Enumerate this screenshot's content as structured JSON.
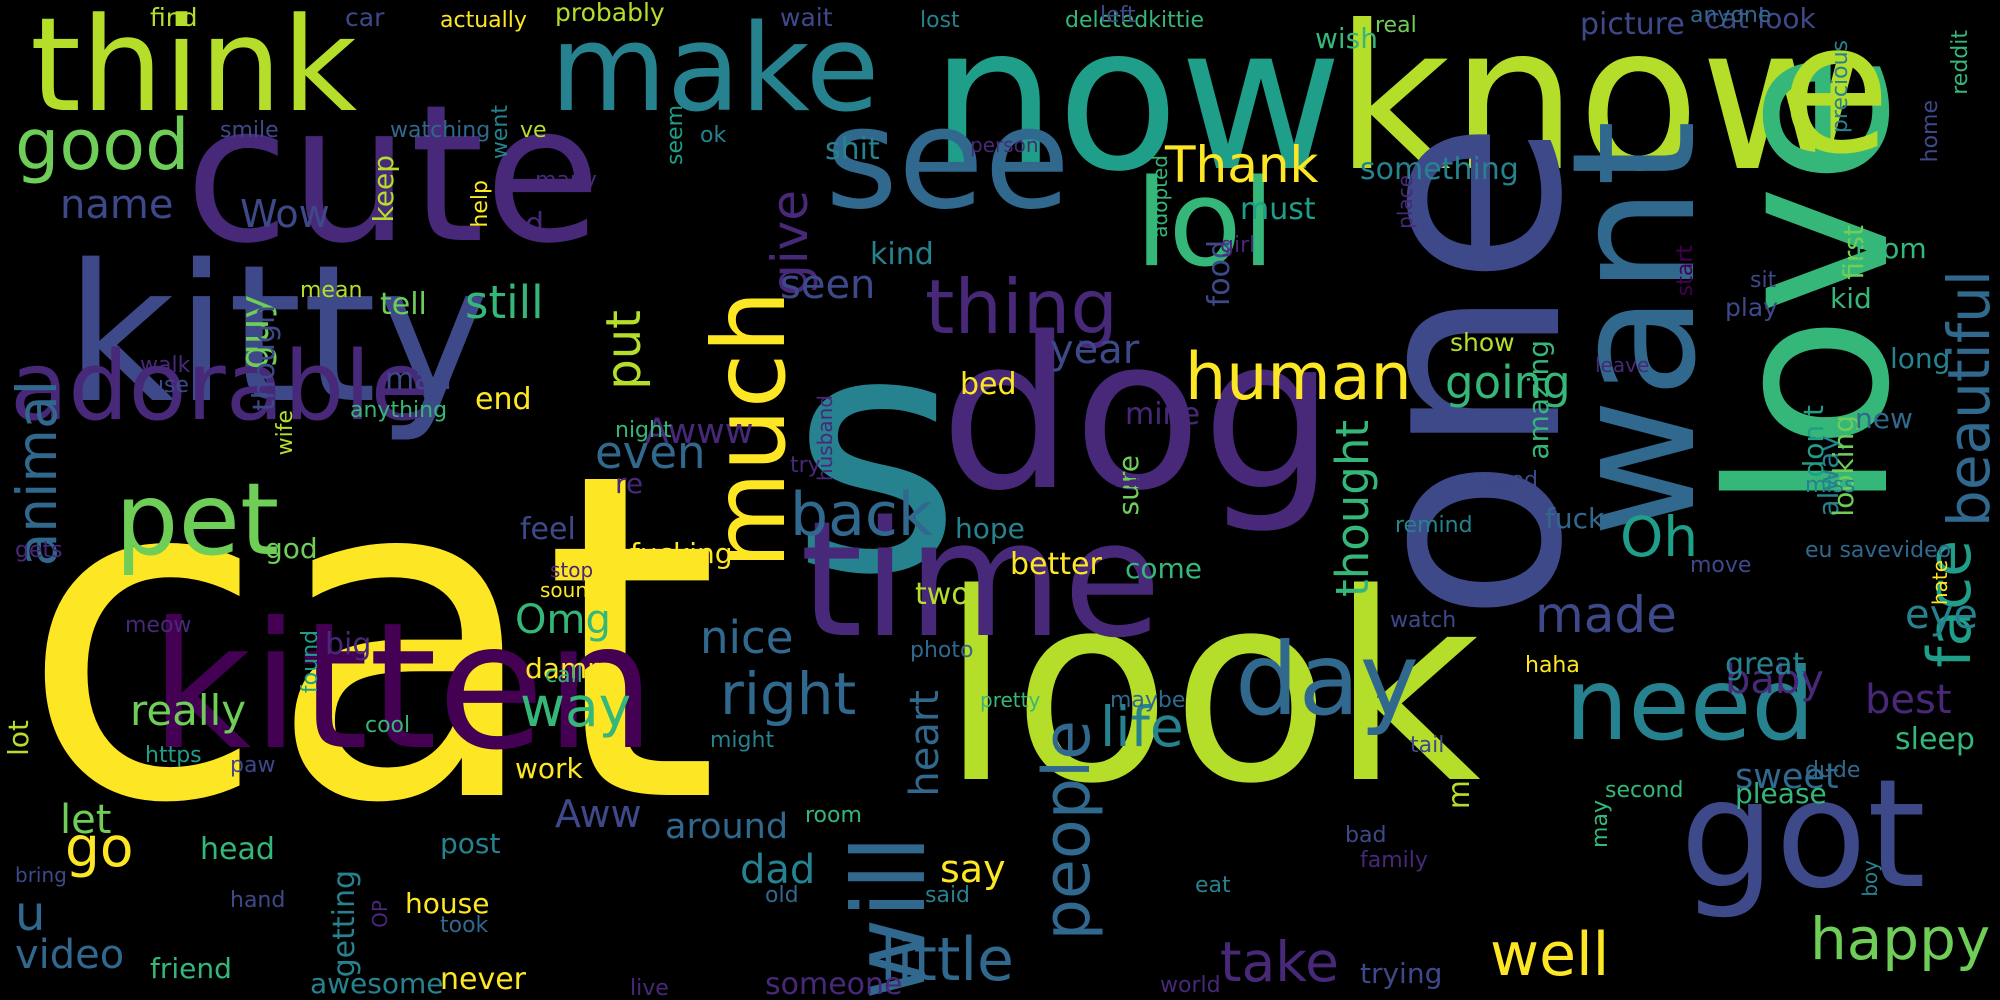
{
  "palette": {
    "yellow": "#fde725",
    "lime": "#b5de2b",
    "green": "#6ece58",
    "seagreen": "#35b779",
    "teal": "#1f9e89",
    "cyan": "#26828e",
    "blue": "#31688e",
    "indigo": "#3e4989",
    "purple": "#482878",
    "deep": "#440154"
  },
  "words": [
    {
      "text": "cat",
      "color": "yellow"
    },
    {
      "text": "look",
      "color": "lime"
    },
    {
      "text": "s",
      "color": "cyan"
    },
    {
      "text": "now",
      "color": "teal"
    },
    {
      "text": "know",
      "color": "lime"
    },
    {
      "text": "one",
      "color": "indigo"
    },
    {
      "text": "love",
      "color": "seagreen"
    },
    {
      "text": "cute",
      "color": "purple"
    },
    {
      "text": "kitty",
      "color": "indigo"
    },
    {
      "text": "kitten",
      "color": "deep"
    },
    {
      "text": "think",
      "color": "lime"
    },
    {
      "text": "dog",
      "color": "purple"
    },
    {
      "text": "make",
      "color": "cyan"
    },
    {
      "text": "see",
      "color": "blue"
    },
    {
      "text": "time",
      "color": "purple"
    },
    {
      "text": "want",
      "color": "blue"
    },
    {
      "text": "got",
      "color": "indigo"
    },
    {
      "text": "e",
      "color": "lime"
    },
    {
      "text": "lol",
      "color": "seagreen"
    },
    {
      "text": "adorable",
      "color": "purple"
    },
    {
      "text": "pet",
      "color": "green"
    },
    {
      "text": "need",
      "color": "cyan"
    },
    {
      "text": "day",
      "color": "blue"
    },
    {
      "text": "will",
      "color": "blue"
    },
    {
      "text": "much",
      "color": "yellow"
    },
    {
      "text": "good",
      "color": "green"
    },
    {
      "text": "thing",
      "color": "purple"
    },
    {
      "text": "human",
      "color": "yellow"
    },
    {
      "text": "little",
      "color": "blue"
    },
    {
      "text": "people",
      "color": "blue"
    },
    {
      "text": "happy",
      "color": "green"
    },
    {
      "text": "well",
      "color": "yellow"
    },
    {
      "text": "take",
      "color": "purple"
    },
    {
      "text": "face",
      "color": "teal"
    },
    {
      "text": "back",
      "color": "blue"
    },
    {
      "text": "right",
      "color": "blue"
    },
    {
      "text": "way",
      "color": "seagreen"
    },
    {
      "text": "go",
      "color": "yellow"
    },
    {
      "text": "life",
      "color": "cyan"
    },
    {
      "text": "Oh",
      "color": "teal"
    },
    {
      "text": "made",
      "color": "indigo"
    },
    {
      "text": "beautiful",
      "color": "blue"
    },
    {
      "text": "Thank",
      "color": "yellow"
    },
    {
      "text": "animal",
      "color": "blue"
    },
    {
      "text": "video",
      "color": "blue"
    },
    {
      "text": "really",
      "color": "green"
    },
    {
      "text": "nice",
      "color": "blue"
    },
    {
      "text": "even",
      "color": "blue"
    },
    {
      "text": "u",
      "color": "blue"
    },
    {
      "text": "still",
      "color": "seagreen"
    },
    {
      "text": "put",
      "color": "lime"
    },
    {
      "text": "give",
      "color": "purple"
    },
    {
      "text": "name",
      "color": "indigo"
    },
    {
      "text": "going",
      "color": "seagreen"
    },
    {
      "text": "thought",
      "color": "seagreen"
    },
    {
      "text": "say",
      "color": "yellow"
    },
    {
      "text": "let",
      "color": "green"
    },
    {
      "text": "Omg",
      "color": "seagreen"
    },
    {
      "text": "seen",
      "color": "indigo"
    },
    {
      "text": "eye",
      "color": "cyan"
    },
    {
      "text": "best",
      "color": "purple"
    },
    {
      "text": "sweet",
      "color": "blue"
    },
    {
      "text": "heart",
      "color": "blue"
    },
    {
      "text": "year",
      "color": "indigo"
    },
    {
      "text": "baby",
      "color": "purple"
    },
    {
      "text": "guy",
      "color": "green"
    },
    {
      "text": "Aww",
      "color": "indigo"
    },
    {
      "text": "Awww",
      "color": "purple"
    },
    {
      "text": "Wow",
      "color": "indigo"
    },
    {
      "text": "around",
      "color": "blue"
    },
    {
      "text": "something",
      "color": "cyan"
    },
    {
      "text": "shit",
      "color": "cyan"
    },
    {
      "text": "amazing",
      "color": "seagreen"
    },
    {
      "text": "alway",
      "color": "cyan"
    },
    {
      "text": "don t",
      "color": "teal"
    },
    {
      "text": "looking",
      "color": "green"
    },
    {
      "text": "first",
      "color": "green"
    },
    {
      "text": "tell",
      "color": "green"
    },
    {
      "text": "food",
      "color": "indigo"
    },
    {
      "text": "must",
      "color": "teal"
    },
    {
      "text": "kind",
      "color": "cyan"
    },
    {
      "text": "better",
      "color": "yellow"
    },
    {
      "text": "two",
      "color": "lime"
    },
    {
      "text": "feel",
      "color": "indigo"
    },
    {
      "text": "great",
      "color": "cyan"
    },
    {
      "text": "sleep",
      "color": "seagreen"
    },
    {
      "text": "man",
      "color": "indigo"
    },
    {
      "text": "though",
      "color": "indigo"
    },
    {
      "text": "keep",
      "color": "lime"
    },
    {
      "text": "god",
      "color": "green"
    },
    {
      "text": "end",
      "color": "yellow"
    },
    {
      "text": "sure",
      "color": "green"
    },
    {
      "text": "come",
      "color": "seagreen"
    },
    {
      "text": "mine",
      "color": "purple"
    },
    {
      "text": "bed",
      "color": "yellow"
    },
    {
      "text": "hope",
      "color": "cyan"
    },
    {
      "text": "fuck",
      "color": "blue"
    },
    {
      "text": "play",
      "color": "indigo"
    },
    {
      "text": "long",
      "color": "cyan"
    },
    {
      "text": "mom",
      "color": "seagreen"
    },
    {
      "text": "kid",
      "color": "seagreen"
    },
    {
      "text": "new",
      "color": "blue"
    },
    {
      "text": "wish",
      "color": "seagreen"
    },
    {
      "text": "picture",
      "color": "indigo"
    },
    {
      "text": "cat look",
      "color": "indigo"
    },
    {
      "text": "home",
      "color": "indigo"
    },
    {
      "text": "big",
      "color": "purple"
    },
    {
      "text": "damn",
      "color": "yellow"
    },
    {
      "text": "work",
      "color": "yellow"
    },
    {
      "text": "head",
      "color": "seagreen"
    },
    {
      "text": "post",
      "color": "cyan"
    },
    {
      "text": "house",
      "color": "yellow"
    },
    {
      "text": "awesome",
      "color": "cyan"
    },
    {
      "text": "friend",
      "color": "seagreen"
    },
    {
      "text": "someone",
      "color": "purple"
    },
    {
      "text": "never",
      "color": "yellow"
    },
    {
      "text": "trying",
      "color": "indigo"
    },
    {
      "text": "m",
      "color": "lime"
    },
    {
      "text": "dad",
      "color": "cyan"
    },
    {
      "text": "please",
      "color": "seagreen"
    },
    {
      "text": "getting",
      "color": "cyan"
    },
    {
      "text": "lot",
      "color": "lime"
    },
    {
      "text": "d",
      "color": "purple"
    },
    {
      "text": "re",
      "color": "purple"
    },
    {
      "text": "fucking",
      "color": "yellow"
    },
    {
      "text": "show",
      "color": "lime"
    },
    {
      "text": "find",
      "color": "lime"
    },
    {
      "text": "car",
      "color": "indigo"
    },
    {
      "text": "actually",
      "color": "yellow"
    },
    {
      "text": "probably",
      "color": "lime"
    },
    {
      "text": "wait",
      "color": "indigo"
    },
    {
      "text": "lost",
      "color": "cyan"
    },
    {
      "text": "deletedkittie",
      "color": "seagreen"
    },
    {
      "text": "left",
      "color": "indigo"
    },
    {
      "text": "real",
      "color": "green"
    },
    {
      "text": "anyone",
      "color": "blue"
    },
    {
      "text": "precious",
      "color": "cyan"
    },
    {
      "text": "reddit",
      "color": "seagreen"
    },
    {
      "text": "smile",
      "color": "indigo"
    },
    {
      "text": "watching",
      "color": "blue"
    },
    {
      "text": "ve",
      "color": "lime"
    },
    {
      "text": "ok",
      "color": "cyan"
    },
    {
      "text": "person",
      "color": "purple"
    },
    {
      "text": "went",
      "color": "cyan"
    },
    {
      "text": "seem",
      "color": "teal"
    },
    {
      "text": "many",
      "color": "purple"
    },
    {
      "text": "help",
      "color": "yellow"
    },
    {
      "text": "adopted",
      "color": "seagreen"
    },
    {
      "text": "place",
      "color": "purple"
    },
    {
      "text": "girl",
      "color": "purple"
    },
    {
      "text": "start",
      "color": "deep"
    },
    {
      "text": "sit",
      "color": "indigo"
    },
    {
      "text": "mean",
      "color": "lime"
    },
    {
      "text": "walk",
      "color": "purple"
    },
    {
      "text": "use",
      "color": "indigo"
    },
    {
      "text": "wife",
      "color": "lime"
    },
    {
      "text": "anything",
      "color": "seagreen"
    },
    {
      "text": "husband",
      "color": "purple"
    },
    {
      "text": "leave",
      "color": "purple"
    },
    {
      "text": "night",
      "color": "seagreen"
    },
    {
      "text": "gets",
      "color": "purple"
    },
    {
      "text": "stop",
      "color": "purple"
    },
    {
      "text": "sound",
      "color": "yellow"
    },
    {
      "text": "try",
      "color": "purple"
    },
    {
      "text": "saw",
      "color": "purple"
    },
    {
      "text": "used",
      "color": "indigo"
    },
    {
      "text": "remind",
      "color": "cyan"
    },
    {
      "text": "miss",
      "color": "cyan"
    },
    {
      "text": "eu savevideo",
      "color": "blue"
    },
    {
      "text": "hate",
      "color": "yellow"
    },
    {
      "text": "move",
      "color": "indigo"
    },
    {
      "text": "watch",
      "color": "indigo"
    },
    {
      "text": "haha",
      "color": "yellow"
    },
    {
      "text": "dude",
      "color": "blue"
    },
    {
      "text": "meow",
      "color": "purple"
    },
    {
      "text": "found",
      "color": "teal"
    },
    {
      "text": "call",
      "color": "seagreen"
    },
    {
      "text": "photo",
      "color": "blue"
    },
    {
      "text": "pretty",
      "color": "seagreen"
    },
    {
      "text": "maybe",
      "color": "blue"
    },
    {
      "text": "cool",
      "color": "seagreen"
    },
    {
      "text": "https",
      "color": "teal"
    },
    {
      "text": "might",
      "color": "cyan"
    },
    {
      "text": "tail",
      "color": "indigo"
    },
    {
      "text": "second",
      "color": "seagreen"
    },
    {
      "text": "paw",
      "color": "indigo"
    },
    {
      "text": "room",
      "color": "seagreen"
    },
    {
      "text": "bad",
      "color": "indigo"
    },
    {
      "text": "family",
      "color": "purple"
    },
    {
      "text": "may",
      "color": "seagreen"
    },
    {
      "text": "boy",
      "color": "cyan"
    },
    {
      "text": "bring",
      "color": "indigo"
    },
    {
      "text": "hand",
      "color": "indigo"
    },
    {
      "text": "OP",
      "color": "purple"
    },
    {
      "text": "took",
      "color": "blue"
    },
    {
      "text": "old",
      "color": "blue"
    },
    {
      "text": "said",
      "color": "cyan"
    },
    {
      "text": "eat",
      "color": "cyan"
    },
    {
      "text": "live",
      "color": "purple"
    },
    {
      "text": "world",
      "color": "purple"
    }
  ]
}
